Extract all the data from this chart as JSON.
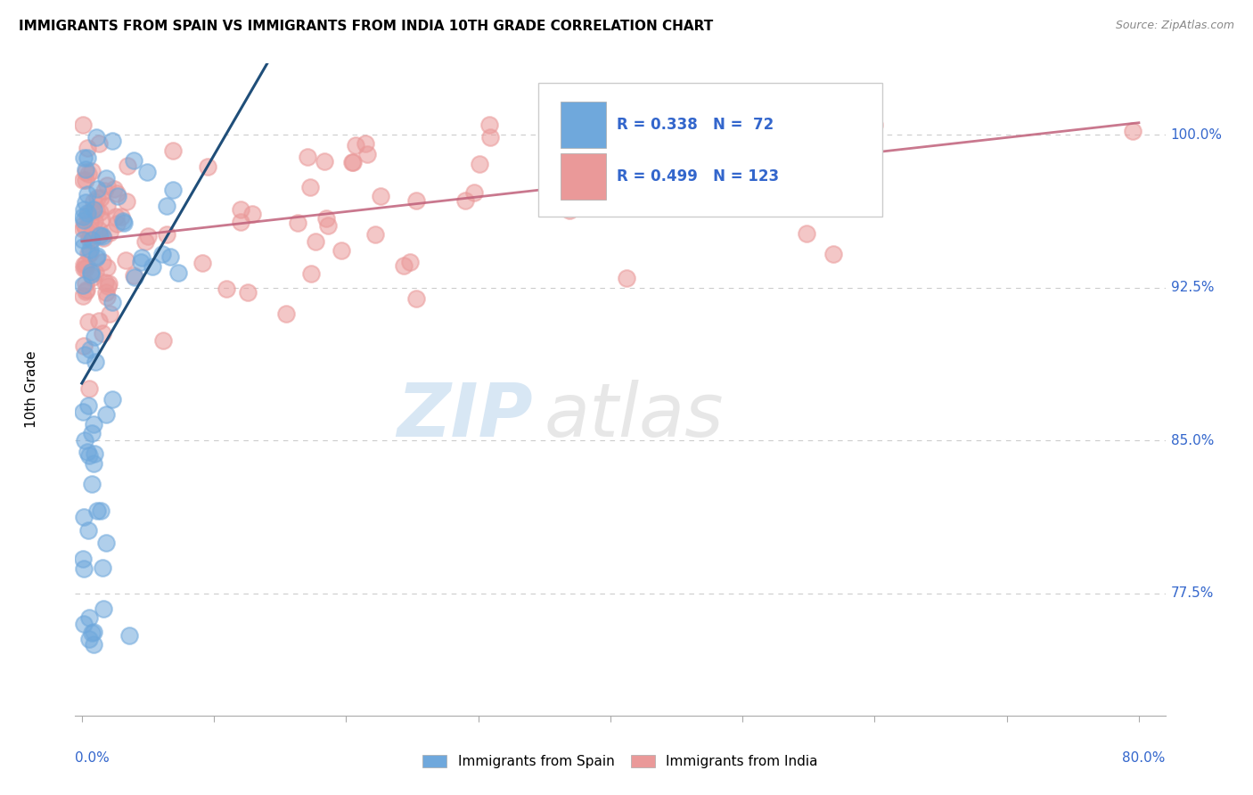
{
  "title": "IMMIGRANTS FROM SPAIN VS IMMIGRANTS FROM INDIA 10TH GRADE CORRELATION CHART",
  "source": "Source: ZipAtlas.com",
  "ylabel": "10th Grade",
  "ytick_labels": [
    "100.0%",
    "92.5%",
    "85.0%",
    "77.5%"
  ],
  "ytick_values": [
    1.0,
    0.925,
    0.85,
    0.775
  ],
  "ymin": 0.715,
  "ymax": 1.035,
  "xmin": -0.005,
  "xmax": 0.82,
  "watermark_zip": "ZIP",
  "watermark_atlas": "atlas",
  "color_spain": "#6fa8dc",
  "color_india": "#ea9999",
  "trendline_color_spain": "#1f4e79",
  "trendline_color_india": "#c0607a",
  "grid_color": "#cccccc",
  "legend_color": "#3366cc",
  "background_color": "#ffffff"
}
